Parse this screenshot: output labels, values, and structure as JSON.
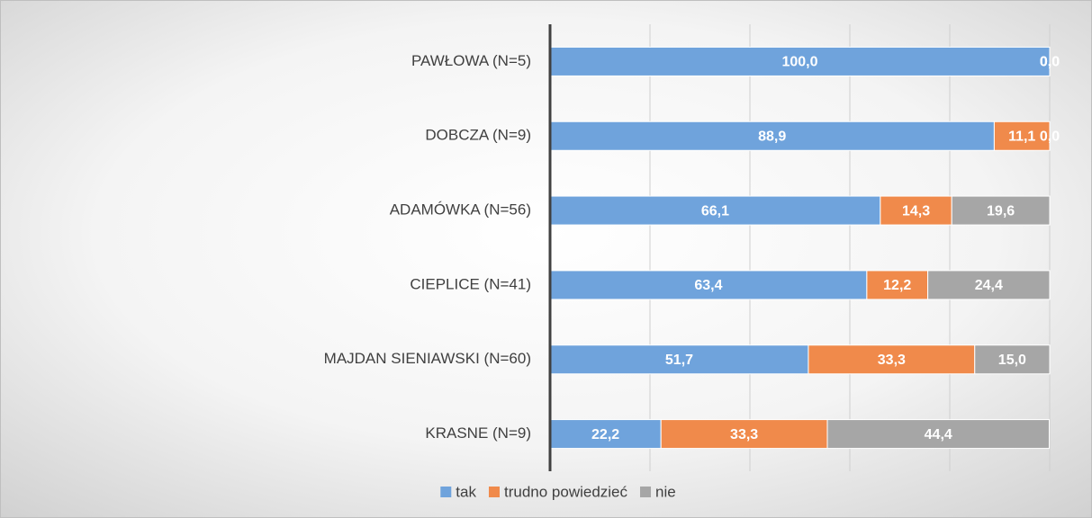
{
  "chart_data": {
    "type": "stacked-barh",
    "categories": [
      "PAWŁOWA (N=5)",
      "DOBCZA (N=9)",
      "ADAMÓWKA (N=56)",
      "CIEPLICE (N=41)",
      "MAJDAN SIENIAWSKI (N=60)",
      "KRASNE (N=9)"
    ],
    "series": [
      {
        "name": "tak",
        "color": "#6fa3dc",
        "values": [
          100,
          88.9,
          66.1,
          63.4,
          51.7,
          22.2
        ],
        "value_labels": [
          "100,0",
          "88,9",
          "66,1",
          "63,4",
          "51,7",
          "22,2"
        ]
      },
      {
        "name": "trudno powiedzieć",
        "color": "#f08a4b",
        "values": [
          0,
          11.1,
          14.3,
          12.2,
          33.3,
          33.3
        ],
        "value_labels": [
          "0,0",
          "11,1",
          "14,3",
          "12,2",
          "33,3",
          "33,3"
        ]
      },
      {
        "name": "nie",
        "color": "#a6a6a6",
        "values": [
          0,
          0,
          19.6,
          24.4,
          15.0,
          44.4
        ],
        "value_labels": [
          "0,0",
          "0,0",
          "19,6",
          "24,4",
          "15,0",
          "44,4"
        ]
      }
    ],
    "xlim": [
      0,
      100
    ],
    "xticks": [
      0,
      20,
      40,
      60,
      80,
      100
    ],
    "grid": true,
    "legend": "bottom"
  }
}
